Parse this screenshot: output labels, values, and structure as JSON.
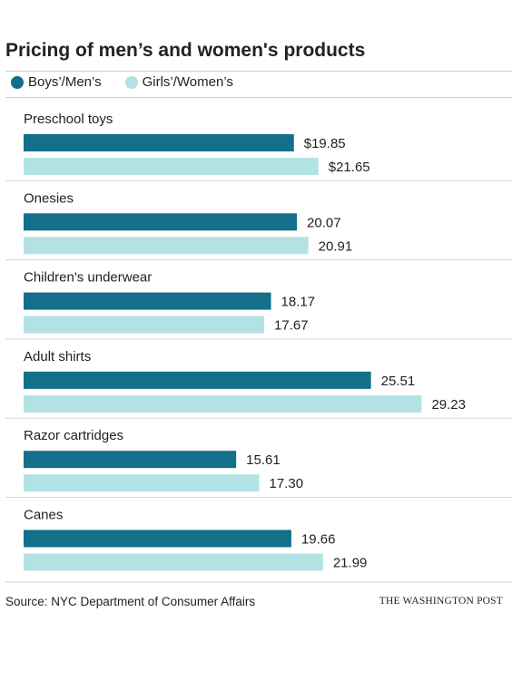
{
  "colors": {
    "men": "#136f8a",
    "women": "#b2e2e4"
  },
  "chart_data": {
    "type": "bar",
    "orientation": "horizontal",
    "title": "Pricing of men’s and women's products",
    "categories": [
      "Preschool toys",
      "Onesies",
      "Children's underwear",
      "Adult shirts",
      "Razor cartridges",
      "Canes"
    ],
    "series": [
      {
        "name": "Boys’/Men’s",
        "values": [
          19.85,
          20.07,
          18.17,
          25.51,
          15.61,
          19.66
        ],
        "labels": [
          "$19.85",
          "20.07",
          "18.17",
          "25.51",
          "15.61",
          "19.66"
        ]
      },
      {
        "name": "Girls’/Women’s",
        "values": [
          21.65,
          20.91,
          17.67,
          29.23,
          17.3,
          21.99
        ],
        "labels": [
          "$21.65",
          "20.91",
          "17.67",
          "29.23",
          "17.30",
          "21.99"
        ]
      }
    ],
    "xlim": [
      0,
      30
    ],
    "legend_position": "top-left",
    "grid": false
  },
  "footer": {
    "source": "Source: NYC Department of Consumer Affairs",
    "credit": "THE WASHINGTON POST"
  }
}
